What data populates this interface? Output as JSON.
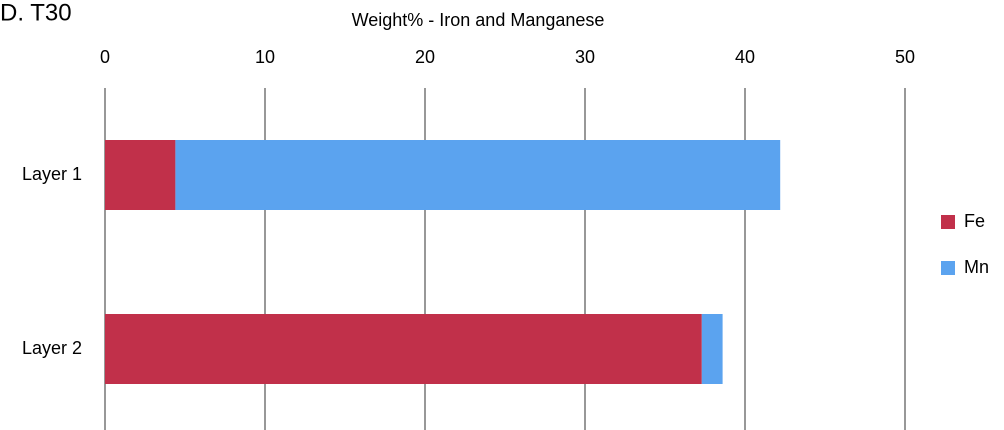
{
  "chart_data": {
    "type": "bar",
    "orientation": "horizontal",
    "stacked": true,
    "title": "D. T30",
    "x_label": "Weight% - Iron and Manganese",
    "categories": [
      "Layer 1",
      "Layer 2"
    ],
    "series": [
      {
        "name": "Fe",
        "color": "#c1304a",
        "values": [
          4.4,
          37.3
        ]
      },
      {
        "name": "Mn",
        "color": "#5ba3ef",
        "values": [
          37.8,
          1.3
        ]
      }
    ],
    "xlim": [
      0,
      50
    ],
    "xticks": [
      0,
      10,
      20,
      30,
      40,
      50
    ],
    "grid": true,
    "legend": "right"
  }
}
